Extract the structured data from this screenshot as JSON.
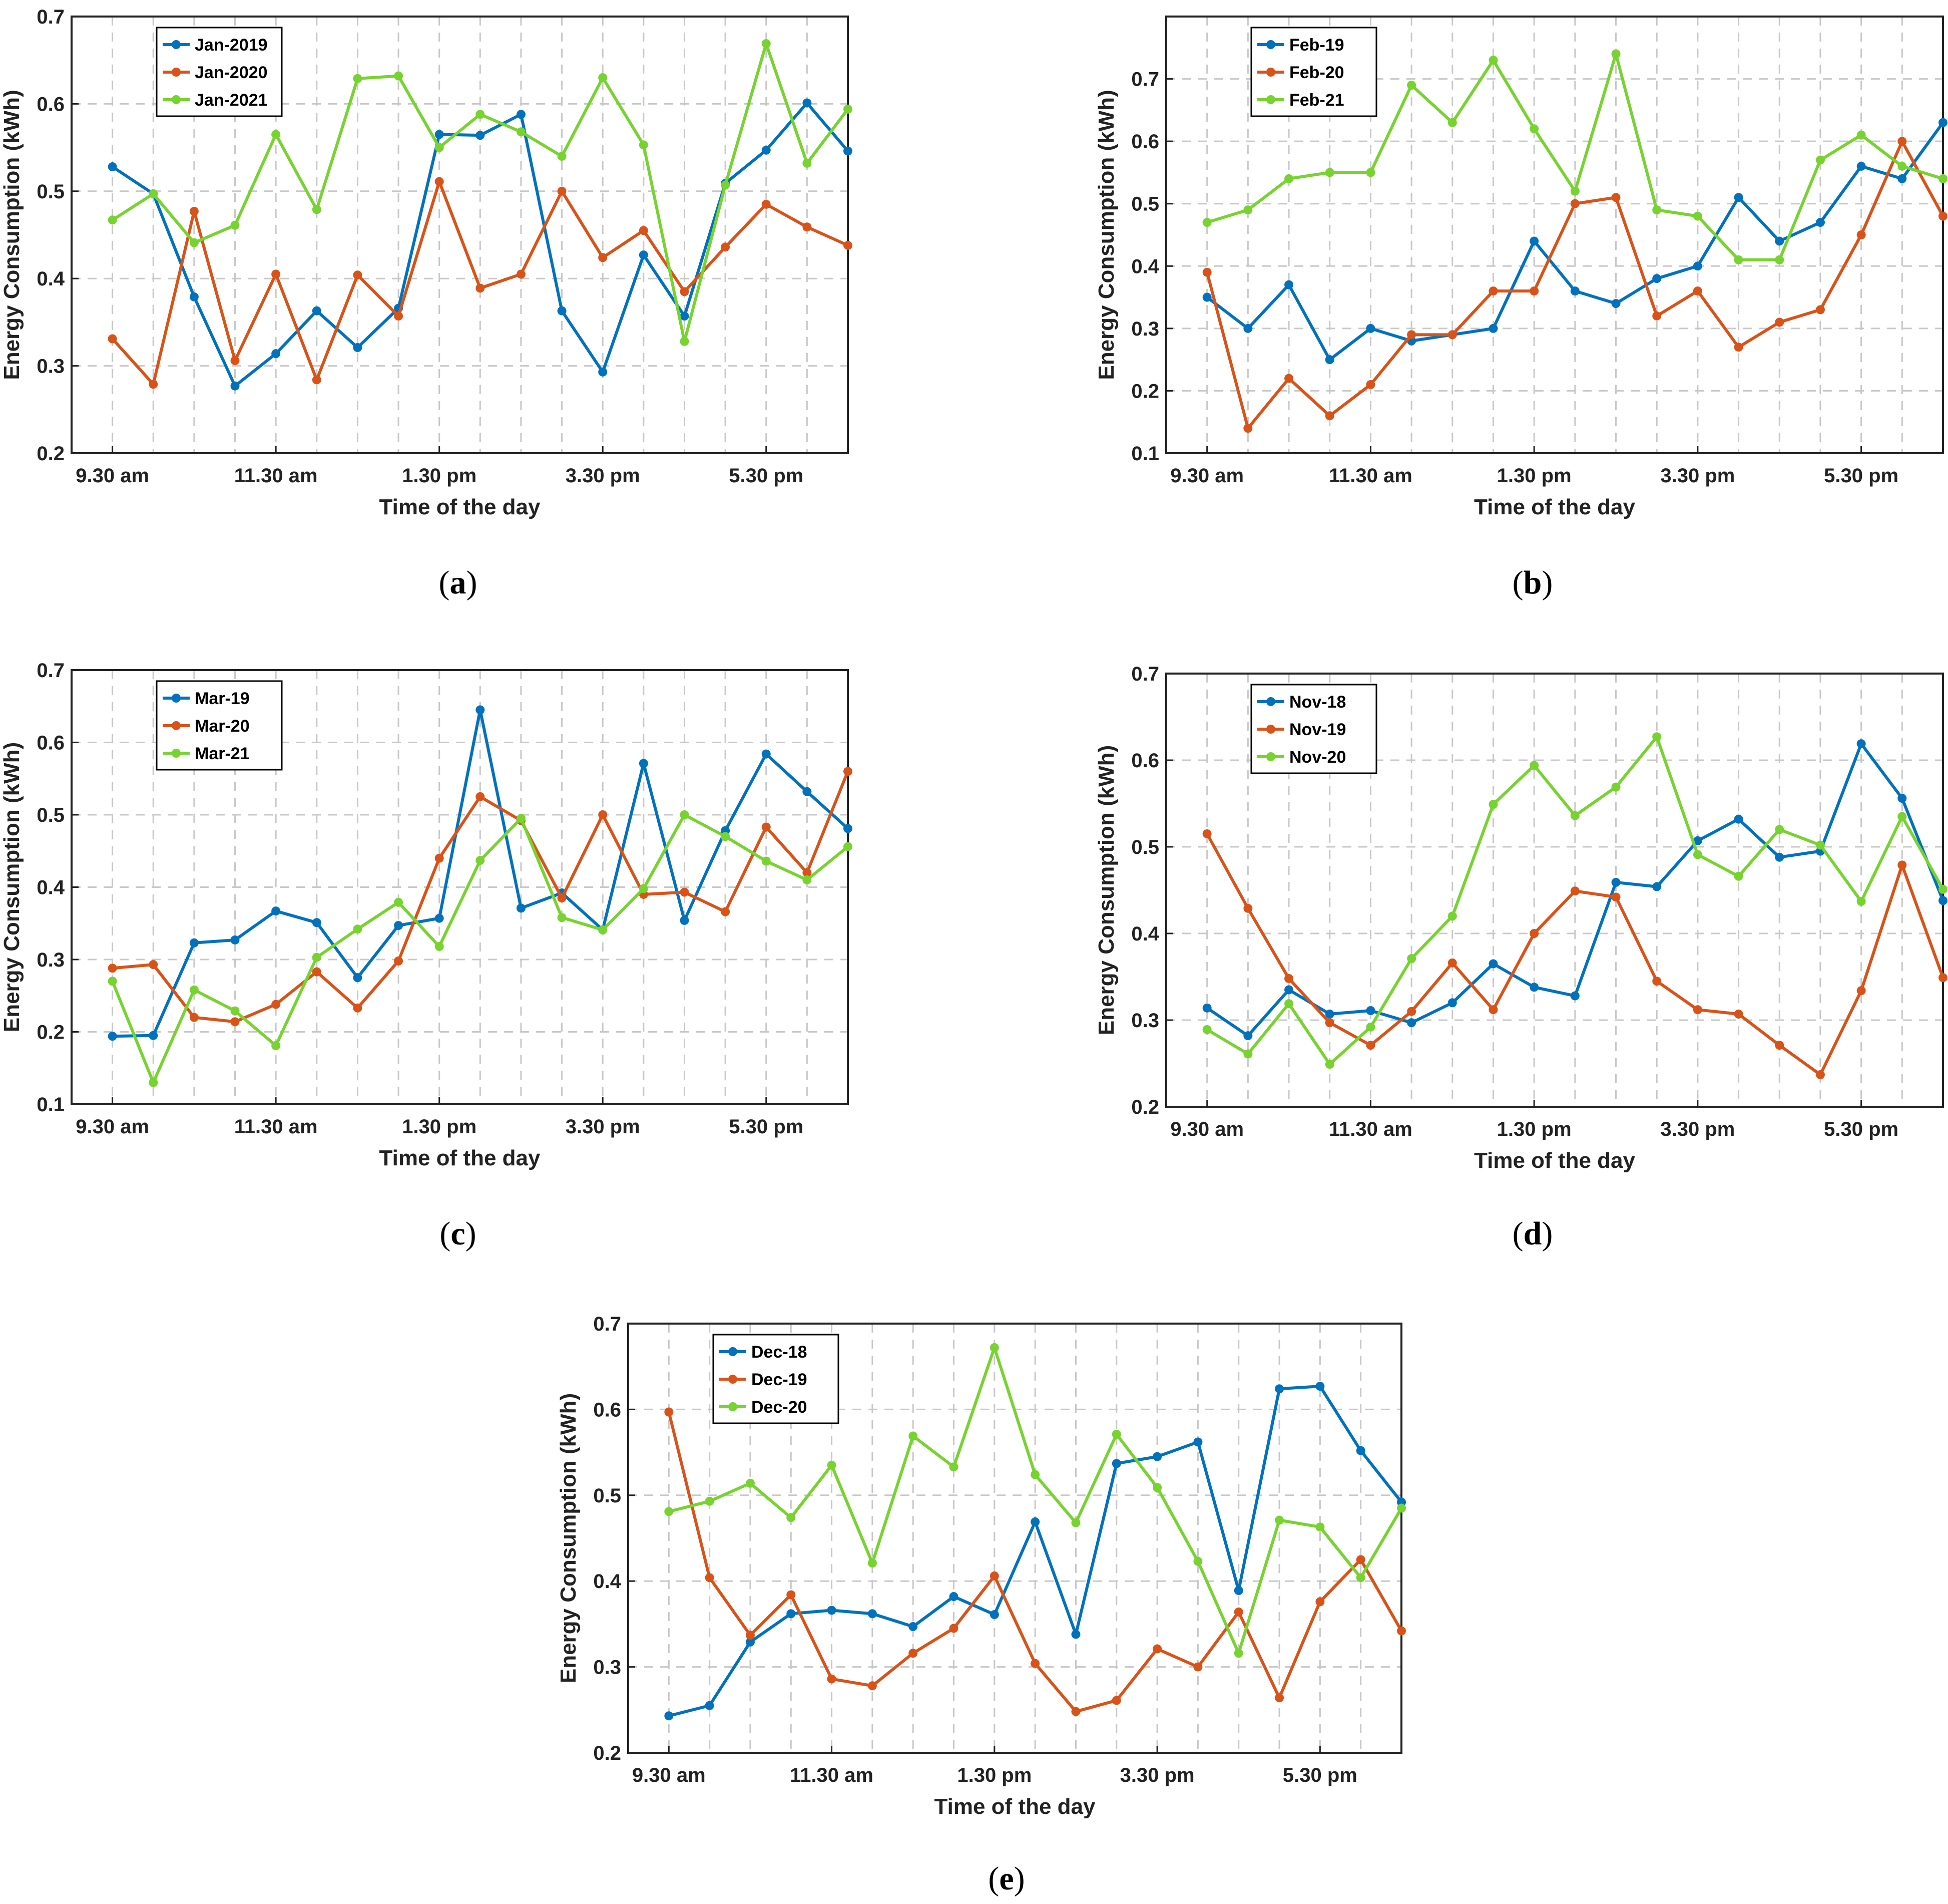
{
  "colors": {
    "series1": "#0072BD",
    "series2": "#D95319",
    "series3": "#77D330",
    "grid": "#c8c8c8",
    "axis": "#222222"
  },
  "chart_data": [
    {
      "type": "line",
      "caption": "a",
      "x": [
        1,
        2,
        3,
        4,
        5,
        6,
        7,
        8,
        9,
        10,
        11,
        12,
        13,
        14,
        15,
        16,
        17,
        18,
        19
      ],
      "xlim": [
        0,
        19
      ],
      "xticks": [
        1,
        5,
        9,
        13,
        17
      ],
      "xticklabels": [
        "9.30 am",
        "11.30 am",
        "1.30 pm",
        "3.30 pm",
        "5.30 pm"
      ],
      "ylim": [
        0.2,
        0.7
      ],
      "yticks": [
        "0.2",
        "0.3",
        "0.4",
        "0.5",
        "0.6",
        "0.7"
      ],
      "xlabel": "Time of the day",
      "ylabel": "Energy Consumption (kWh)",
      "legend_position": "top-left",
      "series": [
        {
          "name": "Jan-2019",
          "values": [
            0.528,
            0.497,
            0.379,
            0.277,
            0.314,
            0.363,
            0.321,
            0.366,
            0.565,
            0.564,
            0.588,
            0.363,
            0.293,
            0.427,
            0.357,
            0.509,
            0.547,
            0.601,
            0.546
          ]
        },
        {
          "name": "Jan-2020",
          "values": [
            0.331,
            0.279,
            0.477,
            0.306,
            0.405,
            0.284,
            0.404,
            0.357,
            0.511,
            0.389,
            0.405,
            0.5,
            0.424,
            0.455,
            0.385,
            0.436,
            0.485,
            0.459,
            0.438
          ]
        },
        {
          "name": "Jan-2021",
          "values": [
            0.467,
            0.497,
            0.441,
            0.461,
            0.565,
            0.479,
            0.629,
            0.632,
            0.55,
            0.588,
            0.568,
            0.54,
            0.63,
            0.553,
            0.328,
            0.507,
            0.669,
            0.532,
            0.594
          ]
        }
      ]
    },
    {
      "type": "line",
      "caption": "b",
      "x": [
        1,
        2,
        3,
        4,
        5,
        6,
        7,
        8,
        9,
        10,
        11,
        12,
        13,
        14,
        15,
        16,
        17,
        18,
        19
      ],
      "xlim": [
        0,
        19
      ],
      "xticks": [
        1,
        5,
        9,
        13,
        17
      ],
      "xticklabels": [
        "9.30 am",
        "11.30 am",
        "1.30 pm",
        "3.30 pm",
        "5.30 pm"
      ],
      "ylim": [
        0.1,
        0.8
      ],
      "yticks": [
        "0.1",
        "0.2",
        "0.3",
        "0.4",
        "0.5",
        "0.6",
        "0.7"
      ],
      "xlabel": "Time of the day",
      "ylabel": "Energy Consumption (kWh)",
      "legend_position": "top-left",
      "series": [
        {
          "name": "Feb-19",
          "values": [
            0.35,
            0.3,
            0.37,
            0.25,
            0.3,
            0.28,
            0.29,
            0.3,
            0.44,
            0.36,
            0.34,
            0.38,
            0.4,
            0.51,
            0.44,
            0.47,
            0.56,
            0.54,
            0.63
          ]
        },
        {
          "name": "Feb-20",
          "values": [
            0.39,
            0.14,
            0.22,
            0.16,
            0.21,
            0.29,
            0.29,
            0.36,
            0.36,
            0.5,
            0.51,
            0.32,
            0.36,
            0.27,
            0.31,
            0.33,
            0.45,
            0.6,
            0.48
          ]
        },
        {
          "name": "Feb-21",
          "values": [
            0.47,
            0.49,
            0.54,
            0.55,
            0.55,
            0.69,
            0.63,
            0.73,
            0.62,
            0.52,
            0.74,
            0.49,
            0.48,
            0.41,
            0.41,
            0.57,
            0.61,
            0.56,
            0.54
          ]
        }
      ]
    },
    {
      "type": "line",
      "caption": "c",
      "x": [
        1,
        2,
        3,
        4,
        5,
        6,
        7,
        8,
        9,
        10,
        11,
        12,
        13,
        14,
        15,
        16,
        17,
        18,
        19
      ],
      "xlim": [
        0,
        19
      ],
      "xticks": [
        1,
        5,
        9,
        13,
        17
      ],
      "xticklabels": [
        "9.30 am",
        "11.30 am",
        "1.30 pm",
        "3.30 pm",
        "5.30 pm"
      ],
      "ylim": [
        0.1,
        0.7
      ],
      "yticks": [
        "0.1",
        "0.2",
        "0.3",
        "0.4",
        "0.5",
        "0.6",
        "0.7"
      ],
      "xlabel": "Time of the day",
      "ylabel": "Energy Consumption (kWh)",
      "legend_position": "top-left",
      "series": [
        {
          "name": "Mar-19",
          "values": [
            0.194,
            0.195,
            0.323,
            0.327,
            0.367,
            0.351,
            0.275,
            0.347,
            0.357,
            0.645,
            0.371,
            0.392,
            0.341,
            0.571,
            0.354,
            0.478,
            0.584,
            0.532,
            0.481
          ]
        },
        {
          "name": "Mar-20",
          "values": [
            0.288,
            0.293,
            0.22,
            0.214,
            0.238,
            0.283,
            0.233,
            0.298,
            0.44,
            0.525,
            0.492,
            0.385,
            0.5,
            0.39,
            0.393,
            0.366,
            0.483,
            0.42,
            0.56
          ]
        },
        {
          "name": "Mar-21",
          "values": [
            0.27,
            0.13,
            0.258,
            0.229,
            0.181,
            0.303,
            0.342,
            0.379,
            0.318,
            0.437,
            0.495,
            0.358,
            0.341,
            0.398,
            0.5,
            0.47,
            0.436,
            0.41,
            0.456
          ]
        }
      ]
    },
    {
      "type": "line",
      "caption": "d",
      "x": [
        1,
        2,
        3,
        4,
        5,
        6,
        7,
        8,
        9,
        10,
        11,
        12,
        13,
        14,
        15,
        16,
        17,
        18,
        19
      ],
      "xlim": [
        0,
        19
      ],
      "xticks": [
        1,
        5,
        9,
        13,
        17
      ],
      "xticklabels": [
        "9.30 am",
        "11.30 am",
        "1.30 pm",
        "3.30 pm",
        "5.30 pm"
      ],
      "ylim": [
        0.2,
        0.7
      ],
      "yticks": [
        "0.2",
        "0.3",
        "0.4",
        "0.5",
        "0.6",
        "0.7"
      ],
      "xlabel": "Time of the day",
      "ylabel": "Energy Consumption (kWh)",
      "legend_position": "top-left",
      "series": [
        {
          "name": "Nov-18",
          "values": [
            0.314,
            0.282,
            0.335,
            0.307,
            0.311,
            0.297,
            0.32,
            0.365,
            0.338,
            0.328,
            0.459,
            0.454,
            0.507,
            0.532,
            0.488,
            0.495,
            0.619,
            0.556,
            0.438
          ]
        },
        {
          "name": "Nov-19",
          "values": [
            0.515,
            0.429,
            0.348,
            0.297,
            0.271,
            0.31,
            0.366,
            0.312,
            0.4,
            0.449,
            0.442,
            0.345,
            0.312,
            0.307,
            0.271,
            0.237,
            0.334,
            0.479,
            0.349
          ]
        },
        {
          "name": "Nov-20",
          "values": [
            0.289,
            0.261,
            0.319,
            0.249,
            0.292,
            0.371,
            0.42,
            0.549,
            0.594,
            0.536,
            0.569,
            0.627,
            0.491,
            0.466,
            0.52,
            0.502,
            0.437,
            0.535,
            0.451
          ]
        }
      ]
    },
    {
      "type": "line",
      "caption": "e",
      "x": [
        1,
        2,
        3,
        4,
        5,
        6,
        7,
        8,
        9,
        10,
        11,
        12,
        13,
        14,
        15,
        16,
        17,
        18,
        19
      ],
      "xlim": [
        0,
        19
      ],
      "xticks": [
        1,
        5,
        9,
        13,
        17
      ],
      "xticklabels": [
        "9.30 am",
        "11.30 am",
        "1.30 pm",
        "3.30 pm",
        "5.30 pm"
      ],
      "ylim": [
        0.2,
        0.7
      ],
      "yticks": [
        "0.2",
        "0.3",
        "0.4",
        "0.5",
        "0.6",
        "0.7"
      ],
      "xlabel": "Time of the day",
      "ylabel": "Energy Consumption (kWh)",
      "legend_position": "top-left",
      "series": [
        {
          "name": "Dec-18",
          "values": [
            0.243,
            0.255,
            0.329,
            0.362,
            0.366,
            0.362,
            0.347,
            0.382,
            0.361,
            0.469,
            0.338,
            0.537,
            0.545,
            0.562,
            0.389,
            0.624,
            0.627,
            0.552,
            0.492
          ]
        },
        {
          "name": "Dec-19",
          "values": [
            0.597,
            0.404,
            0.337,
            0.384,
            0.286,
            0.278,
            0.316,
            0.345,
            0.406,
            0.304,
            0.248,
            0.261,
            0.321,
            0.3,
            0.364,
            0.264,
            0.376,
            0.425,
            0.342
          ]
        },
        {
          "name": "Dec-20",
          "values": [
            0.481,
            0.493,
            0.514,
            0.474,
            0.535,
            0.421,
            0.569,
            0.533,
            0.672,
            0.524,
            0.468,
            0.571,
            0.509,
            0.423,
            0.316,
            0.471,
            0.463,
            0.404,
            0.485
          ]
        }
      ]
    }
  ]
}
